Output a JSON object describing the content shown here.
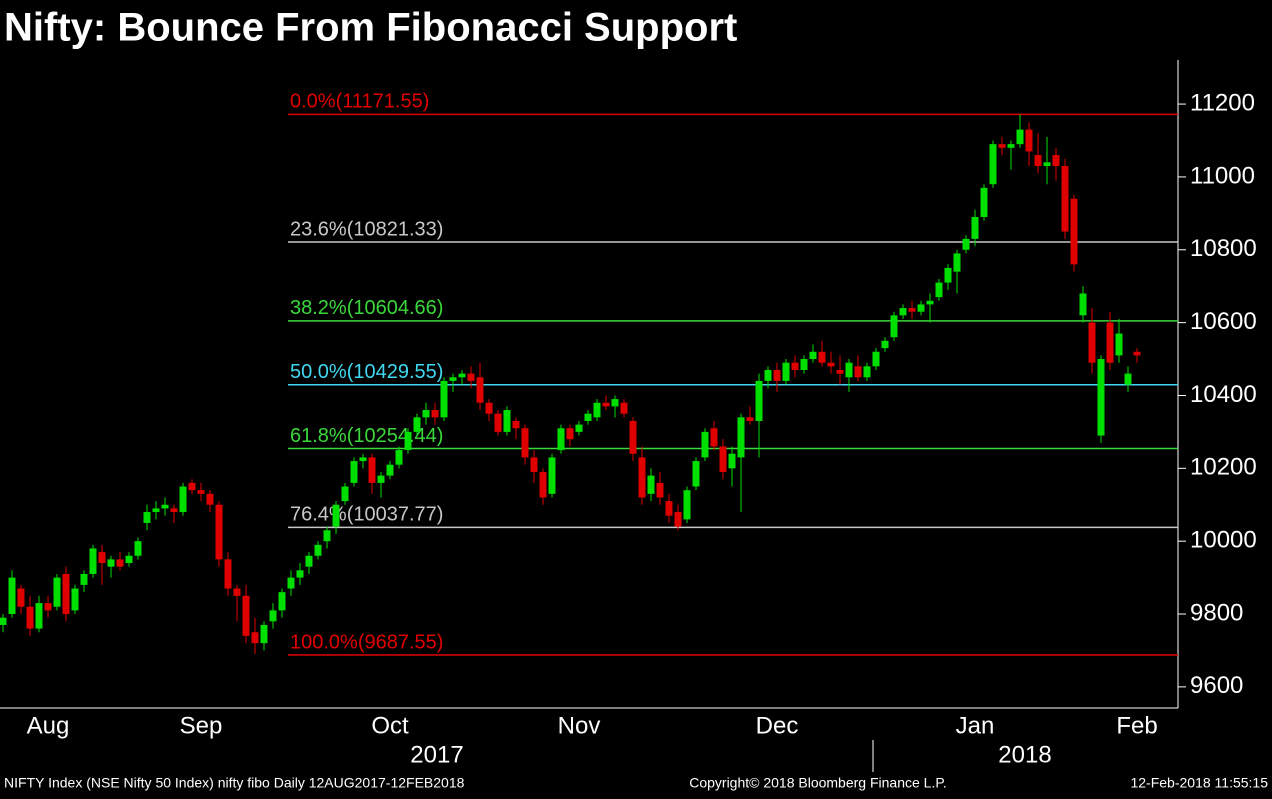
{
  "chart_data": {
    "type": "candlestick",
    "title": "Nifty: Bounce From Fibonacci Support",
    "up_color": "#00e000",
    "down_color": "#e00000",
    "ylim": [
      9542,
      11321
    ],
    "yticks": [
      9600,
      9800,
      10000,
      10200,
      10400,
      10600,
      10800,
      11000,
      11200
    ],
    "levels": [
      {
        "label": "0.0%(11171.55)",
        "value": 11171.55,
        "color": "#e00000"
      },
      {
        "label": "23.6%(10821.33)",
        "value": 10821.33,
        "color": "#c8c8c8"
      },
      {
        "label": "38.2%(10604.66)",
        "value": 10604.66,
        "color": "#3ad83a"
      },
      {
        "label": "50.0%(10429.55)",
        "value": 10429.55,
        "color": "#40d8f0"
      },
      {
        "label": "61.8%(10254.44)",
        "value": 10254.44,
        "color": "#3ad83a"
      },
      {
        "label": "76.4%(10037.77)",
        "value": 10037.77,
        "color": "#c8c8c8"
      },
      {
        "label": "100.0%(9687.55)",
        "value": 9687.55,
        "color": "#e00000"
      }
    ],
    "year_labels": [
      "2017",
      "2018"
    ],
    "source": "NIFTY Index (NSE Nifty 50 Index) nifty fibo  Daily 12AUG2017-12FEB2018",
    "copyright": "Copyright© 2018 Bloomberg Finance L.P.",
    "timestamp": "12-Feb-2018 11:55:15",
    "categories": [
      null,
      null,
      null,
      null,
      null,
      "Aug",
      null,
      null,
      null,
      null,
      null,
      null,
      null,
      null,
      null,
      null,
      null,
      null,
      null,
      null,
      null,
      null,
      "Sep",
      null,
      null,
      null,
      null,
      null,
      null,
      null,
      null,
      null,
      null,
      null,
      null,
      null,
      null,
      null,
      null,
      null,
      null,
      null,
      null,
      "Oct",
      null,
      null,
      null,
      null,
      null,
      null,
      null,
      null,
      null,
      null,
      null,
      null,
      null,
      null,
      null,
      null,
      null,
      null,
      null,
      null,
      "Nov",
      null,
      null,
      null,
      null,
      null,
      null,
      null,
      null,
      null,
      null,
      null,
      null,
      null,
      null,
      null,
      null,
      null,
      null,
      null,
      null,
      null,
      "Dec",
      null,
      null,
      null,
      null,
      null,
      null,
      null,
      null,
      null,
      null,
      null,
      null,
      null,
      null,
      null,
      null,
      null,
      null,
      null,
      null,
      null,
      "Jan",
      null,
      null,
      null,
      null,
      null,
      null,
      null,
      null,
      null,
      null,
      null,
      null,
      null,
      null,
      null,
      null,
      null,
      "Feb"
    ],
    "ohlc": [
      [
        9770,
        9800,
        9750,
        9790
      ],
      [
        9800,
        9920,
        9790,
        9900
      ],
      [
        9870,
        9880,
        9800,
        9820
      ],
      [
        9820,
        9850,
        9740,
        9760
      ],
      [
        9760,
        9850,
        9750,
        9830
      ],
      [
        9830,
        9850,
        9790,
        9810
      ],
      [
        9820,
        9910,
        9810,
        9900
      ],
      [
        9910,
        9930,
        9780,
        9800
      ],
      [
        9810,
        9880,
        9800,
        9870
      ],
      [
        9880,
        9920,
        9860,
        9910
      ],
      [
        9910,
        9990,
        9900,
        9980
      ],
      [
        9970,
        9990,
        9880,
        9940
      ],
      [
        9930,
        9960,
        9900,
        9950
      ],
      [
        9950,
        9970,
        9920,
        9930
      ],
      [
        9940,
        9970,
        9930,
        9960
      ],
      [
        9960,
        10010,
        9950,
        10000
      ],
      [
        10050,
        10100,
        10030,
        10080
      ],
      [
        10080,
        10110,
        10060,
        10090
      ],
      [
        10090,
        10120,
        10070,
        10100
      ],
      [
        10090,
        10100,
        10050,
        10080
      ],
      [
        10080,
        10160,
        10070,
        10150
      ],
      [
        10160,
        10170,
        10130,
        10140
      ],
      [
        10140,
        10160,
        10110,
        10130
      ],
      [
        10130,
        10140,
        10080,
        10100
      ],
      [
        10100,
        10110,
        9930,
        9950
      ],
      [
        9950,
        9970,
        9850,
        9870
      ],
      [
        9870,
        9880,
        9780,
        9850
      ],
      [
        9850,
        9880,
        9720,
        9740
      ],
      [
        9750,
        9790,
        9690,
        9720
      ],
      [
        9720,
        9780,
        9700,
        9770
      ],
      [
        9780,
        9830,
        9760,
        9810
      ],
      [
        9810,
        9870,
        9790,
        9860
      ],
      [
        9870,
        9920,
        9850,
        9900
      ],
      [
        9900,
        9940,
        9880,
        9920
      ],
      [
        9930,
        9970,
        9910,
        9960
      ],
      [
        9960,
        10000,
        9950,
        9990
      ],
      [
        10000,
        10040,
        9980,
        10030
      ],
      [
        10040,
        10110,
        10020,
        10100
      ],
      [
        10110,
        10160,
        10100,
        10150
      ],
      [
        10160,
        10230,
        10150,
        10220
      ],
      [
        10220,
        10240,
        10200,
        10230
      ],
      [
        10230,
        10240,
        10130,
        10160
      ],
      [
        10160,
        10190,
        10120,
        10180
      ],
      [
        10180,
        10220,
        10170,
        10210
      ],
      [
        10210,
        10260,
        10200,
        10250
      ],
      [
        10250,
        10310,
        10240,
        10300
      ],
      [
        10300,
        10350,
        10290,
        10340
      ],
      [
        10340,
        10380,
        10320,
        10360
      ],
      [
        10360,
        10380,
        10320,
        10340
      ],
      [
        10340,
        10450,
        10330,
        10440
      ],
      [
        10440,
        10460,
        10410,
        10450
      ],
      [
        10450,
        10470,
        10430,
        10460
      ],
      [
        10460,
        10480,
        10420,
        10440
      ],
      [
        10450,
        10490,
        10360,
        10380
      ],
      [
        10380,
        10390,
        10330,
        10350
      ],
      [
        10350,
        10360,
        10290,
        10300
      ],
      [
        10300,
        10370,
        10290,
        10360
      ],
      [
        10330,
        10340,
        10280,
        10310
      ],
      [
        10310,
        10320,
        10210,
        10230
      ],
      [
        10230,
        10250,
        10160,
        10190
      ],
      [
        10190,
        10200,
        10100,
        10120
      ],
      [
        10130,
        10240,
        10120,
        10230
      ],
      [
        10250,
        10320,
        10240,
        10310
      ],
      [
        10310,
        10320,
        10260,
        10280
      ],
      [
        10300,
        10330,
        10290,
        10320
      ],
      [
        10330,
        10360,
        10320,
        10350
      ],
      [
        10340,
        10390,
        10330,
        10380
      ],
      [
        10380,
        10400,
        10360,
        10370
      ],
      [
        10370,
        10400,
        10340,
        10390
      ],
      [
        10380,
        10390,
        10340,
        10350
      ],
      [
        10330,
        10340,
        10220,
        10240
      ],
      [
        10230,
        10260,
        10100,
        10120
      ],
      [
        10130,
        10200,
        10110,
        10180
      ],
      [
        10160,
        10190,
        10100,
        10120
      ],
      [
        10110,
        10130,
        10050,
        10070
      ],
      [
        10080,
        10100,
        10030,
        10040
      ],
      [
        10060,
        10150,
        10050,
        10140
      ],
      [
        10150,
        10230,
        10140,
        10220
      ],
      [
        10230,
        10310,
        10220,
        10300
      ],
      [
        10310,
        10330,
        10250,
        10260
      ],
      [
        10260,
        10280,
        10170,
        10190
      ],
      [
        10200,
        10260,
        10150,
        10240
      ],
      [
        10230,
        10350,
        10080,
        10340
      ],
      [
        10340,
        10370,
        10320,
        10330
      ],
      [
        10330,
        10460,
        10230,
        10440
      ],
      [
        10440,
        10480,
        10420,
        10470
      ],
      [
        10470,
        10490,
        10410,
        10440
      ],
      [
        10440,
        10500,
        10430,
        10490
      ],
      [
        10490,
        10510,
        10450,
        10470
      ],
      [
        10470,
        10510,
        10460,
        10500
      ],
      [
        10500,
        10540,
        10490,
        10520
      ],
      [
        10520,
        10550,
        10480,
        10490
      ],
      [
        10490,
        10520,
        10460,
        10480
      ],
      [
        10470,
        10510,
        10430,
        10460
      ],
      [
        10450,
        10500,
        10410,
        10490
      ],
      [
        10480,
        10510,
        10440,
        10450
      ],
      [
        10450,
        10490,
        10440,
        10480
      ],
      [
        10480,
        10530,
        10470,
        10520
      ],
      [
        10530,
        10560,
        10520,
        10550
      ],
      [
        10560,
        10630,
        10550,
        10620
      ],
      [
        10620,
        10650,
        10610,
        10640
      ],
      [
        10640,
        10660,
        10610,
        10630
      ],
      [
        10630,
        10660,
        10620,
        10650
      ],
      [
        10650,
        10680,
        10600,
        10660
      ],
      [
        10670,
        10720,
        10660,
        10710
      ],
      [
        10710,
        10760,
        10690,
        10750
      ],
      [
        10740,
        10800,
        10680,
        10790
      ],
      [
        10800,
        10840,
        10790,
        10830
      ],
      [
        10830,
        10910,
        10810,
        10890
      ],
      [
        10890,
        10980,
        10880,
        10970
      ],
      [
        10980,
        11100,
        10970,
        11090
      ],
      [
        11090,
        11110,
        11060,
        11080
      ],
      [
        11080,
        11100,
        11020,
        11090
      ],
      [
        11090,
        11171.55,
        11080,
        11130
      ],
      [
        11130,
        11150,
        11030,
        11070
      ],
      [
        11060,
        11120,
        11010,
        11030
      ],
      [
        11030,
        11110,
        10980,
        11040
      ],
      [
        11060,
        11080,
        10990,
        11030
      ],
      [
        11030,
        11050,
        10830,
        10850
      ],
      [
        10940,
        10950,
        10740,
        10760
      ],
      [
        10620,
        10700,
        10600,
        10680
      ],
      [
        10600,
        10640,
        10460,
        10490
      ],
      [
        10290,
        10510,
        10270,
        10500
      ],
      [
        10600,
        10630,
        10470,
        10490
      ],
      [
        10510,
        10610,
        10490,
        10570
      ],
      [
        10430,
        10480,
        10410,
        10460
      ],
      [
        10520,
        10530,
        10490,
        10510
      ]
    ]
  }
}
